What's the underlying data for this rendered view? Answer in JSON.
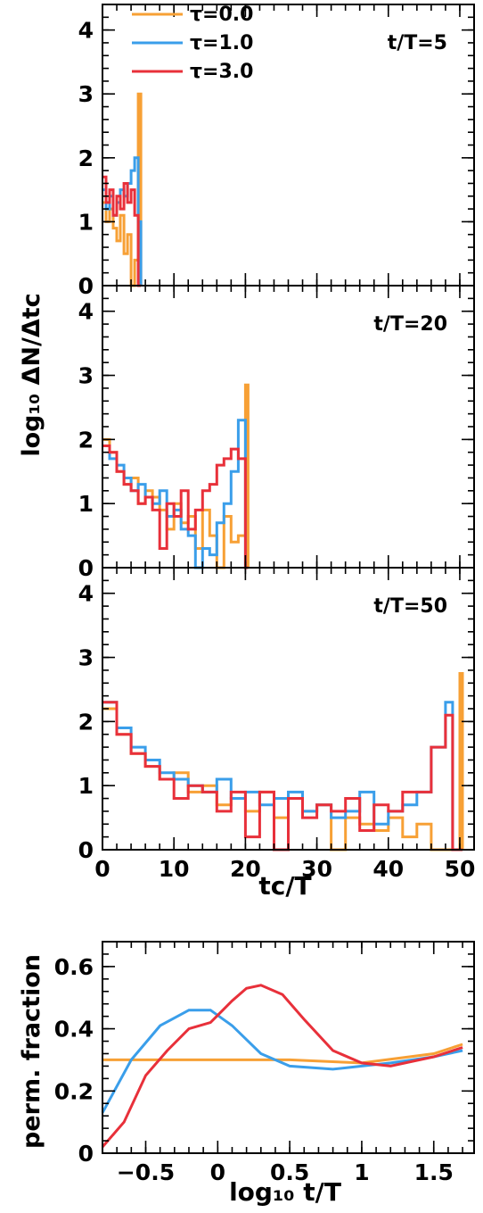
{
  "figure": {
    "ylabel_hist": "log₁₀ ΔN/Δtᴄ",
    "xlabel_hist": "tᴄ/T",
    "ylabel_frac": "perm. fraction",
    "xlabel_frac": "log₁₀ t/T"
  },
  "legend": [
    {
      "label": "τ=0.0",
      "color": "#f7a035"
    },
    {
      "label": "τ=1.0",
      "color": "#3a9eea"
    },
    {
      "label": "τ=3.0",
      "color": "#e8303a"
    }
  ],
  "chart_data": [
    {
      "type": "line",
      "annotation": "t/T=5",
      "xlim": [
        0,
        52
      ],
      "ylim": [
        0,
        4.4
      ],
      "yticks": [
        "0",
        "1",
        "2",
        "3",
        "4"
      ],
      "series": [
        {
          "name": "τ=0.0",
          "color": "#f7a035",
          "x": [
            0,
            0.5,
            1,
            1.5,
            2,
            2.5,
            3,
            3.5,
            4,
            4.5,
            5
          ],
          "y": [
            1.3,
            1.0,
            1.2,
            0.9,
            0.7,
            1.1,
            0.5,
            0.8,
            0.0,
            0.4,
            3.0
          ]
        },
        {
          "name": "τ=1.0",
          "color": "#3a9eea",
          "x": [
            0,
            0.5,
            1,
            1.5,
            2,
            2.5,
            3,
            3.5,
            4,
            4.5,
            5
          ],
          "y": [
            1.5,
            1.2,
            1.4,
            1.1,
            1.3,
            1.5,
            1.4,
            1.6,
            1.8,
            2.0,
            1.0
          ]
        },
        {
          "name": "τ=3.0",
          "color": "#e8303a",
          "x": [
            0,
            0.5,
            1,
            1.5,
            2,
            2.5,
            3,
            3.5,
            4,
            4.5,
            5
          ],
          "y": [
            1.7,
            1.3,
            1.5,
            1.1,
            1.4,
            1.2,
            1.6,
            1.3,
            1.5,
            1.1,
            0.0
          ]
        }
      ]
    },
    {
      "type": "line",
      "annotation": "t/T=20",
      "xlim": [
        0,
        52
      ],
      "ylim": [
        0,
        4.4
      ],
      "yticks": [
        "0",
        "1",
        "2",
        "3",
        "4"
      ],
      "series": [
        {
          "name": "τ=0.0",
          "color": "#f7a035",
          "x": [
            0,
            1,
            2,
            3,
            4,
            5,
            6,
            7,
            8,
            9,
            10,
            11,
            12,
            13,
            14,
            15,
            16,
            17,
            18,
            19,
            20
          ],
          "y": [
            2.0,
            1.8,
            1.5,
            1.3,
            1.4,
            1.0,
            1.2,
            1.1,
            0.9,
            0.6,
            1.0,
            0.7,
            0.8,
            0.3,
            0.9,
            0.5,
            0.0,
            0.8,
            0.4,
            0.5,
            2.85
          ]
        },
        {
          "name": "τ=1.0",
          "color": "#3a9eea",
          "x": [
            0,
            1,
            2,
            3,
            4,
            5,
            6,
            7,
            8,
            9,
            10,
            11,
            12,
            13,
            14,
            15,
            16,
            17,
            18,
            19,
            20
          ],
          "y": [
            1.9,
            1.7,
            1.6,
            1.4,
            1.2,
            1.3,
            1.1,
            1.0,
            1.2,
            0.8,
            0.9,
            0.6,
            0.5,
            0.0,
            0.3,
            0.2,
            0.7,
            1.0,
            1.5,
            2.3,
            0.0
          ]
        },
        {
          "name": "τ=3.0",
          "color": "#e8303a",
          "x": [
            0,
            1,
            2,
            3,
            4,
            5,
            6,
            7,
            8,
            9,
            10,
            11,
            12,
            13,
            14,
            15,
            16,
            17,
            18,
            19,
            20
          ],
          "y": [
            1.9,
            1.8,
            1.5,
            1.3,
            1.2,
            1.0,
            1.1,
            0.9,
            0.3,
            1.0,
            0.8,
            1.2,
            0.6,
            0.9,
            1.2,
            1.3,
            1.6,
            1.7,
            1.85,
            1.7,
            0.0
          ]
        }
      ]
    },
    {
      "type": "line",
      "annotation": "t/T=50",
      "xlim": [
        0,
        52
      ],
      "ylim": [
        0,
        4.4
      ],
      "yticks": [
        "0",
        "1",
        "2",
        "3",
        "4"
      ],
      "xticks": [
        "0",
        "10",
        "20",
        "30",
        "40",
        "50"
      ],
      "series": [
        {
          "name": "τ=0.0",
          "color": "#f7a035",
          "x": [
            0,
            2,
            4,
            6,
            8,
            10,
            12,
            14,
            16,
            18,
            20,
            22,
            24,
            26,
            28,
            30,
            32,
            34,
            36,
            38,
            40,
            42,
            44,
            46,
            48,
            49,
            50
          ],
          "y": [
            2.2,
            1.8,
            1.5,
            1.3,
            1.1,
            1.2,
            0.9,
            1.0,
            0.7,
            0.8,
            0.6,
            0.9,
            0.5,
            0.8,
            0.6,
            0.7,
            0.0,
            0.5,
            0.4,
            0.3,
            0.5,
            0.2,
            0.4,
            0.0,
            0.0,
            0.0,
            2.75
          ]
        },
        {
          "name": "τ=1.0",
          "color": "#3a9eea",
          "x": [
            0,
            2,
            4,
            6,
            8,
            10,
            12,
            14,
            16,
            18,
            20,
            22,
            24,
            26,
            28,
            30,
            32,
            34,
            36,
            38,
            40,
            42,
            44,
            46,
            48,
            49,
            50
          ],
          "y": [
            2.3,
            1.9,
            1.6,
            1.4,
            1.2,
            1.1,
            1.0,
            0.9,
            1.1,
            0.8,
            0.9,
            0.7,
            0.8,
            0.9,
            0.6,
            0.7,
            0.5,
            0.6,
            0.9,
            0.4,
            0.6,
            0.7,
            0.9,
            1.6,
            2.3,
            0.0,
            0.0
          ]
        },
        {
          "name": "τ=3.0",
          "color": "#e8303a",
          "x": [
            0,
            2,
            4,
            6,
            8,
            10,
            12,
            14,
            16,
            18,
            20,
            22,
            24,
            26,
            28,
            30,
            32,
            34,
            36,
            38,
            40,
            42,
            44,
            46,
            48,
            49,
            50
          ],
          "y": [
            2.3,
            1.8,
            1.5,
            1.3,
            1.1,
            0.8,
            1.0,
            0.9,
            0.6,
            0.9,
            0.2,
            0.9,
            0.0,
            0.8,
            0.5,
            0.7,
            0.6,
            0.8,
            0.3,
            0.7,
            0.6,
            0.9,
            0.9,
            1.6,
            2.1,
            0.0,
            0.0
          ]
        }
      ]
    },
    {
      "type": "line",
      "xlim": [
        -0.8,
        1.78
      ],
      "ylim": [
        0,
        0.68
      ],
      "yticks": [
        "0",
        "0.2",
        "0.4",
        "0.6"
      ],
      "xticks": [
        "−0.5",
        "0",
        "0.5",
        "1",
        "1.5"
      ],
      "series": [
        {
          "name": "τ=0.0",
          "color": "#f7a035",
          "x": [
            -0.8,
            -0.5,
            0,
            0.5,
            1,
            1.5,
            1.7
          ],
          "y": [
            0.3,
            0.3,
            0.3,
            0.3,
            0.29,
            0.32,
            0.35
          ]
        },
        {
          "name": "τ=1.0",
          "color": "#3a9eea",
          "x": [
            -0.8,
            -0.6,
            -0.4,
            -0.2,
            -0.05,
            0.1,
            0.3,
            0.5,
            0.8,
            1.0,
            1.2,
            1.5,
            1.7
          ],
          "y": [
            0.13,
            0.3,
            0.41,
            0.46,
            0.46,
            0.41,
            0.32,
            0.28,
            0.27,
            0.28,
            0.29,
            0.31,
            0.33
          ]
        },
        {
          "name": "τ=3.0",
          "color": "#e8303a",
          "x": [
            -0.8,
            -0.65,
            -0.5,
            -0.35,
            -0.2,
            -0.05,
            0.1,
            0.2,
            0.3,
            0.45,
            0.6,
            0.8,
            1.0,
            1.2,
            1.5,
            1.7
          ],
          "y": [
            0.02,
            0.1,
            0.25,
            0.33,
            0.4,
            0.42,
            0.49,
            0.53,
            0.54,
            0.51,
            0.43,
            0.33,
            0.29,
            0.28,
            0.31,
            0.34
          ]
        }
      ]
    }
  ]
}
